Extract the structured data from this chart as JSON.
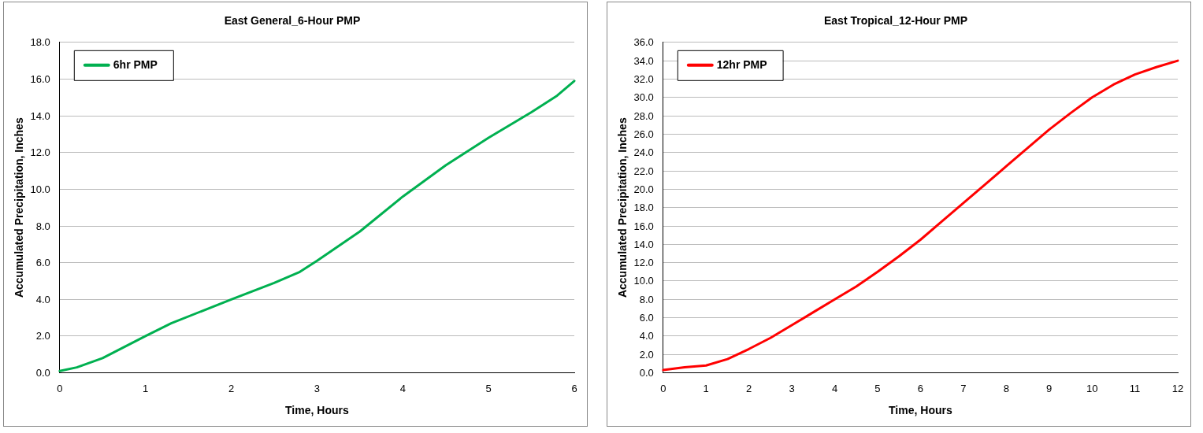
{
  "chart_data": [
    {
      "type": "line",
      "title": "East General_6-Hour PMP",
      "xlabel": "Time, Hours",
      "ylabel": "Accumulated Precipitation, Inches",
      "legend": "top left",
      "grid": "y",
      "marker": "none",
      "line_style": "solid",
      "xlim": [
        0,
        6
      ],
      "xticks": [
        0,
        1,
        2,
        3,
        4,
        5,
        6
      ],
      "ylim": [
        0,
        18
      ],
      "yticks": [
        {
          "value": 0,
          "label": "0.0"
        },
        {
          "value": 2,
          "label": "2.0"
        },
        {
          "value": 4,
          "label": "4.0"
        },
        {
          "value": 6,
          "label": "6.0"
        },
        {
          "value": 8,
          "label": "8.0"
        },
        {
          "value": 10,
          "label": "10.0"
        },
        {
          "value": 12,
          "label": "12.0"
        },
        {
          "value": 14,
          "label": "14.0"
        },
        {
          "value": 16,
          "label": "16.0"
        },
        {
          "value": 18,
          "label": "18.0"
        }
      ],
      "x": [
        0,
        0.2,
        0.5,
        1,
        1.3,
        2,
        2.5,
        2.8,
        3,
        3.5,
        4,
        4.5,
        5,
        5.5,
        5.8,
        6
      ],
      "series": [
        {
          "name": "6hr PMP",
          "color": "#00b050",
          "values": [
            0.1,
            0.3,
            0.8,
            2.0,
            2.7,
            4.0,
            4.9,
            5.5,
            6.1,
            7.7,
            9.6,
            11.3,
            12.8,
            14.2,
            15.1,
            15.9
          ]
        }
      ]
    },
    {
      "type": "line",
      "title": "East Tropical_12-Hour PMP",
      "xlabel": "Time, Hours",
      "ylabel": "Accumulated Precipitation, Inches",
      "legend": "top left",
      "grid": "y",
      "marker": "none",
      "line_style": "solid",
      "xlim": [
        0,
        12
      ],
      "xticks": [
        0,
        1,
        2,
        3,
        4,
        5,
        6,
        7,
        8,
        9,
        10,
        11,
        12
      ],
      "ylim": [
        0,
        36
      ],
      "yticks": [
        {
          "value": 0,
          "label": "0.0"
        },
        {
          "value": 2,
          "label": "2.0"
        },
        {
          "value": 4,
          "label": "4.0"
        },
        {
          "value": 6,
          "label": "6.0"
        },
        {
          "value": 8,
          "label": "8.0"
        },
        {
          "value": 10,
          "label": "10.0"
        },
        {
          "value": 12,
          "label": "12.0"
        },
        {
          "value": 14,
          "label": "14.0"
        },
        {
          "value": 16,
          "label": "16.0"
        },
        {
          "value": 18,
          "label": "18.0"
        },
        {
          "value": 20,
          "label": "20.0"
        },
        {
          "value": 22,
          "label": "22.0"
        },
        {
          "value": 24,
          "label": "24.0"
        },
        {
          "value": 26,
          "label": "26.0"
        },
        {
          "value": 28,
          "label": "28.0"
        },
        {
          "value": 30,
          "label": "30.0"
        },
        {
          "value": 32,
          "label": "32.0"
        },
        {
          "value": 34,
          "label": "34.0"
        },
        {
          "value": 36,
          "label": "36.0"
        }
      ],
      "x": [
        0,
        0.5,
        1,
        1.5,
        2,
        2.5,
        3,
        3.5,
        4,
        4.5,
        5,
        5.5,
        6,
        6.5,
        7,
        7.5,
        8,
        8.5,
        9,
        9.5,
        10,
        10.5,
        11,
        11.5,
        12
      ],
      "series": [
        {
          "name": "12hr PMP",
          "color": "#ff0000",
          "values": [
            0.3,
            0.6,
            0.8,
            1.5,
            2.6,
            3.8,
            5.2,
            6.6,
            8.0,
            9.4,
            11.0,
            12.7,
            14.5,
            16.5,
            18.5,
            20.5,
            22.5,
            24.5,
            26.5,
            28.3,
            30.0,
            31.4,
            32.5,
            33.3,
            34.0
          ]
        }
      ]
    }
  ]
}
